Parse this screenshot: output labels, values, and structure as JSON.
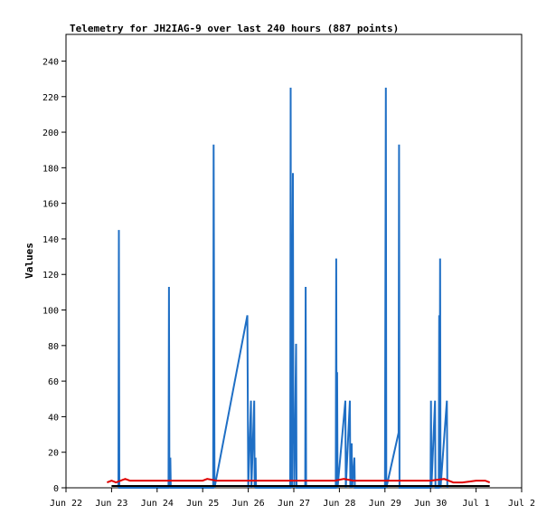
{
  "chart_data": {
    "type": "line",
    "title": "Telemetry for JH2IAG-9 over last 240 hours (887 points)",
    "ylabel": "Values",
    "xlabel": "",
    "ylim": [
      0,
      255
    ],
    "xlim": [
      0,
      10
    ],
    "x_ticks": [
      {
        "x": 0,
        "label": "Jun 22"
      },
      {
        "x": 1,
        "label": "Jun 23"
      },
      {
        "x": 2,
        "label": "Jun 24"
      },
      {
        "x": 3,
        "label": "Jun 25"
      },
      {
        "x": 4,
        "label": "Jun 26"
      },
      {
        "x": 5,
        "label": "Jun 27"
      },
      {
        "x": 6,
        "label": "Jun 28"
      },
      {
        "x": 7,
        "label": "Jun 29"
      },
      {
        "x": 8,
        "label": "Jun 30"
      },
      {
        "x": 9,
        "label": "Jul 1"
      },
      {
        "x": 10,
        "label": "Jul 2"
      }
    ],
    "y_ticks": [
      0,
      20,
      40,
      60,
      80,
      100,
      120,
      140,
      160,
      180,
      200,
      220,
      240
    ],
    "grid": false,
    "series": [
      {
        "color": "#1f6fc5",
        "points": [
          [
            1.15,
            0
          ],
          [
            1.16,
            145
          ],
          [
            1.17,
            0
          ],
          [
            2.25,
            0
          ],
          [
            2.26,
            113
          ],
          [
            2.27,
            0
          ],
          [
            2.29,
            17
          ],
          [
            2.3,
            0
          ],
          [
            3.23,
            0
          ],
          [
            3.24,
            193
          ],
          [
            3.26,
            0
          ],
          [
            3.98,
            97
          ],
          [
            4.0,
            0
          ],
          [
            4.06,
            49
          ],
          [
            4.07,
            0
          ],
          [
            4.13,
            49
          ],
          [
            4.14,
            0
          ],
          [
            4.16,
            17
          ],
          [
            4.17,
            0
          ],
          [
            4.92,
            0
          ],
          [
            4.93,
            225
          ],
          [
            4.94,
            0
          ],
          [
            4.95,
            73
          ],
          [
            4.96,
            0
          ],
          [
            4.97,
            121
          ],
          [
            4.98,
            177
          ],
          [
            4.99,
            25
          ],
          [
            5.0,
            33
          ],
          [
            5.01,
            0
          ],
          [
            5.05,
            81
          ],
          [
            5.06,
            0
          ],
          [
            5.25,
            0
          ],
          [
            5.26,
            113
          ],
          [
            5.27,
            0
          ],
          [
            5.92,
            0
          ],
          [
            5.93,
            129
          ],
          [
            5.94,
            0
          ],
          [
            5.95,
            65
          ],
          [
            5.96,
            0
          ],
          [
            6.13,
            49
          ],
          [
            6.14,
            0
          ],
          [
            6.23,
            49
          ],
          [
            6.24,
            0
          ],
          [
            6.27,
            25
          ],
          [
            6.28,
            0
          ],
          [
            6.33,
            17
          ],
          [
            6.34,
            0
          ],
          [
            7.0,
            0
          ],
          [
            7.02,
            225
          ],
          [
            7.03,
            0
          ],
          [
            7.3,
            31
          ],
          [
            7.31,
            193
          ],
          [
            7.32,
            0
          ],
          [
            8.0,
            0
          ],
          [
            8.01,
            49
          ],
          [
            8.02,
            0
          ],
          [
            8.1,
            49
          ],
          [
            8.11,
            0
          ],
          [
            8.18,
            0
          ],
          [
            8.19,
            97
          ],
          [
            8.2,
            0
          ],
          [
            8.21,
            129
          ],
          [
            8.22,
            0
          ],
          [
            8.36,
            49
          ],
          [
            8.37,
            0
          ]
        ]
      },
      {
        "color": "#e00000",
        "points": [
          [
            0.9,
            3
          ],
          [
            1.0,
            4
          ],
          [
            1.1,
            3
          ],
          [
            1.2,
            4
          ],
          [
            1.3,
            5
          ],
          [
            1.4,
            4
          ],
          [
            2.0,
            4
          ],
          [
            2.5,
            4
          ],
          [
            3.0,
            4
          ],
          [
            3.1,
            5
          ],
          [
            3.3,
            4
          ],
          [
            4.0,
            4
          ],
          [
            4.5,
            4
          ],
          [
            5.0,
            4
          ],
          [
            5.5,
            4
          ],
          [
            5.9,
            4
          ],
          [
            6.1,
            5
          ],
          [
            6.3,
            4
          ],
          [
            7.0,
            4
          ],
          [
            7.5,
            4
          ],
          [
            8.0,
            4
          ],
          [
            8.3,
            5
          ],
          [
            8.5,
            3
          ],
          [
            8.7,
            3
          ],
          [
            9.0,
            4
          ],
          [
            9.2,
            4
          ],
          [
            9.3,
            3
          ]
        ]
      },
      {
        "color": "#000000",
        "points": [
          [
            1.0,
            1
          ],
          [
            9.3,
            1
          ]
        ]
      }
    ]
  }
}
